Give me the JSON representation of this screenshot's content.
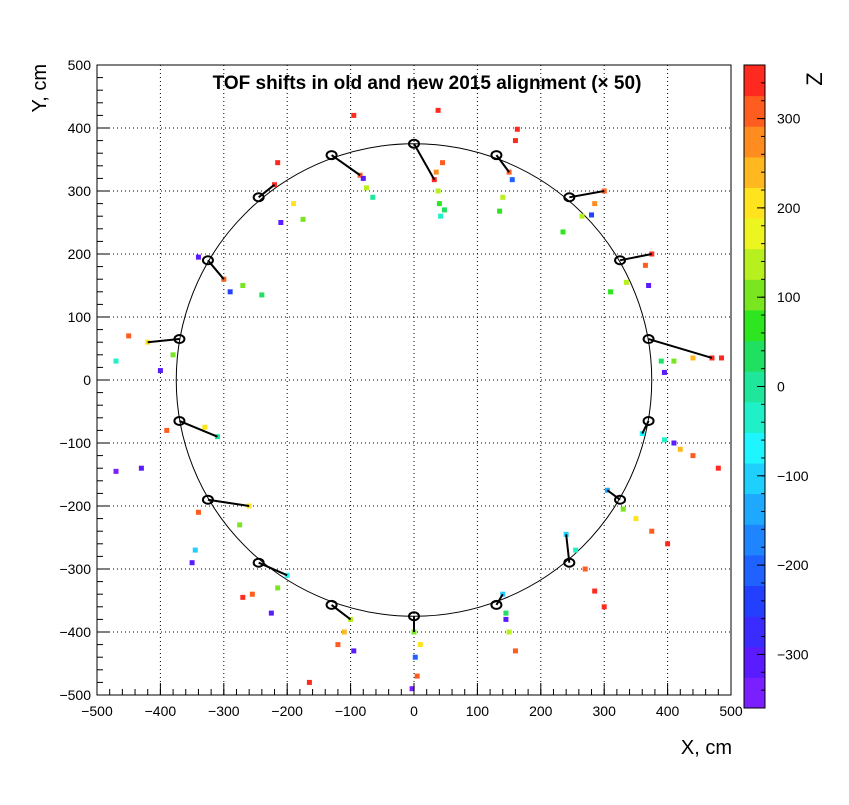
{
  "chart_data": {
    "type": "scatter",
    "title": "TOF shifts in old and new 2015 alignment (× 50)",
    "xlabel": "X, cm",
    "ylabel": "Y, cm",
    "zlabel": "Z",
    "xlim": [
      -500,
      500
    ],
    "ylim": [
      -500,
      500
    ],
    "zlim": [
      -360,
      360
    ],
    "grid": true,
    "x_ticks": [
      -500,
      -400,
      -300,
      -200,
      -100,
      0,
      100,
      200,
      300,
      400,
      500
    ],
    "y_ticks": [
      -500,
      -400,
      -300,
      -200,
      -100,
      0,
      100,
      200,
      300,
      400,
      500
    ],
    "z_ticks": [
      -300,
      -200,
      -100,
      0,
      100,
      200,
      300
    ],
    "z_tick_labels": [
      "−300",
      "−200",
      "−100",
      "0",
      "100",
      "200",
      "300"
    ],
    "x_tick_labels": [
      "−500",
      "−400",
      "−300",
      "−200",
      "−100",
      "0",
      "100",
      "200",
      "300",
      "400",
      "500"
    ],
    "y_tick_labels": [
      "−500",
      "−400",
      "−300",
      "−200",
      "−100",
      "0",
      "100",
      "200",
      "300",
      "400",
      "500"
    ],
    "reference_circle_radius": 375,
    "colormap": [
      "#7a1fff",
      "#5a1cff",
      "#3a2bff",
      "#2440ff",
      "#1f62ff",
      "#1f84ff",
      "#1fa8ff",
      "#1fd0ff",
      "#1ff5ff",
      "#1ff0c8",
      "#1fe69a",
      "#1fe060",
      "#2ee61f",
      "#7ae61f",
      "#b8f01f",
      "#ecf51f",
      "#ffe31f",
      "#ffb81f",
      "#ff8c1f",
      "#ff5c1f",
      "#ff2a1f"
    ],
    "modules": [
      {
        "angle_deg": 90,
        "x": 0,
        "y": 375,
        "points": [
          {
            "x": 32,
            "y": 318,
            "z": 330
          },
          {
            "x": 35,
            "y": 330,
            "z": 280
          },
          {
            "x": 38,
            "y": 300,
            "z": 150
          },
          {
            "x": 40,
            "y": 280,
            "z": 60
          },
          {
            "x": 42,
            "y": 260,
            "z": -40
          },
          {
            "x": 45,
            "y": 345,
            "z": 320
          },
          {
            "x": 38,
            "y": 428,
            "z": 350
          },
          {
            "x": 48,
            "y": 270,
            "z": 20
          }
        ]
      },
      {
        "angle_deg": 70,
        "x": 130,
        "y": 357,
        "points": [
          {
            "x": 150,
            "y": 330,
            "z": 300
          },
          {
            "x": 160,
            "y": 380,
            "z": 340
          },
          {
            "x": 140,
            "y": 290,
            "z": 150
          },
          {
            "x": 135,
            "y": 268,
            "z": 80
          },
          {
            "x": 155,
            "y": 318,
            "z": -200
          },
          {
            "x": 163,
            "y": 398,
            "z": 350
          }
        ]
      },
      {
        "angle_deg": 50,
        "x": 245,
        "y": 290,
        "points": [
          {
            "x": 300,
            "y": 300,
            "z": 300
          },
          {
            "x": 285,
            "y": 280,
            "z": 280
          },
          {
            "x": 265,
            "y": 260,
            "z": 150
          },
          {
            "x": 235,
            "y": 235,
            "z": 80
          },
          {
            "x": 280,
            "y": 262,
            "z": -250
          }
        ]
      },
      {
        "angle_deg": 30,
        "x": 325,
        "y": 190,
        "points": [
          {
            "x": 375,
            "y": 200,
            "z": 340
          },
          {
            "x": 365,
            "y": 182,
            "z": 300
          },
          {
            "x": 335,
            "y": 155,
            "z": 150
          },
          {
            "x": 310,
            "y": 140,
            "z": 80
          },
          {
            "x": 370,
            "y": 150,
            "z": -300
          }
        ]
      },
      {
        "angle_deg": 10,
        "x": 370,
        "y": 65,
        "points": [
          {
            "x": 470,
            "y": 35,
            "z": 330
          },
          {
            "x": 440,
            "y": 35,
            "z": 250
          },
          {
            "x": 410,
            "y": 30,
            "z": 100
          },
          {
            "x": 390,
            "y": 30,
            "z": 20
          },
          {
            "x": 395,
            "y": 12,
            "z": -300
          },
          {
            "x": 485,
            "y": 35,
            "z": 350
          }
        ]
      },
      {
        "angle_deg": -10,
        "x": 370,
        "y": -65,
        "points": [
          {
            "x": 360,
            "y": -85,
            "z": -80
          },
          {
            "x": 395,
            "y": -95,
            "z": -20
          },
          {
            "x": 420,
            "y": -110,
            "z": 250
          },
          {
            "x": 440,
            "y": -120,
            "z": 320
          },
          {
            "x": 410,
            "y": -100,
            "z": -300
          },
          {
            "x": 480,
            "y": -140,
            "z": 350
          }
        ]
      },
      {
        "angle_deg": -30,
        "x": 325,
        "y": -190,
        "points": [
          {
            "x": 305,
            "y": -175,
            "z": -130
          },
          {
            "x": 330,
            "y": -205,
            "z": 100
          },
          {
            "x": 350,
            "y": -220,
            "z": 200
          },
          {
            "x": 375,
            "y": -240,
            "z": 300
          },
          {
            "x": 400,
            "y": -260,
            "z": 340
          }
        ]
      },
      {
        "angle_deg": -50,
        "x": 245,
        "y": -290,
        "points": [
          {
            "x": 240,
            "y": -245,
            "z": -100
          },
          {
            "x": 255,
            "y": -270,
            "z": -50
          },
          {
            "x": 270,
            "y": -300,
            "z": 300
          },
          {
            "x": 285,
            "y": -335,
            "z": 340
          },
          {
            "x": 300,
            "y": -360,
            "z": 350
          }
        ]
      },
      {
        "angle_deg": -70,
        "x": 130,
        "y": -357,
        "points": [
          {
            "x": 140,
            "y": -340,
            "z": -100
          },
          {
            "x": 145,
            "y": -370,
            "z": 50
          },
          {
            "x": 150,
            "y": -400,
            "z": 150
          },
          {
            "x": 160,
            "y": -430,
            "z": 300
          },
          {
            "x": 145,
            "y": -380,
            "z": -300
          }
        ]
      },
      {
        "angle_deg": -90,
        "x": 0,
        "y": -375,
        "points": [
          {
            "x": 0,
            "y": -400,
            "z": 100
          },
          {
            "x": 2,
            "y": -440,
            "z": -200
          },
          {
            "x": 5,
            "y": -470,
            "z": 320
          },
          {
            "x": 10,
            "y": -420,
            "z": 200
          },
          {
            "x": -3,
            "y": -490,
            "z": -350
          }
        ]
      },
      {
        "angle_deg": -110,
        "x": -130,
        "y": -357,
        "points": [
          {
            "x": -100,
            "y": -380,
            "z": 150
          },
          {
            "x": -110,
            "y": -400,
            "z": 250
          },
          {
            "x": -120,
            "y": -420,
            "z": 320
          },
          {
            "x": -95,
            "y": -430,
            "z": -300
          },
          {
            "x": -165,
            "y": -480,
            "z": 340
          }
        ]
      },
      {
        "angle_deg": -130,
        "x": -245,
        "y": -290,
        "points": [
          {
            "x": -200,
            "y": -310,
            "z": -80
          },
          {
            "x": -215,
            "y": -330,
            "z": 100
          },
          {
            "x": -255,
            "y": -340,
            "z": 320
          },
          {
            "x": -270,
            "y": -345,
            "z": 340
          },
          {
            "x": -225,
            "y": -370,
            "z": -300
          }
        ]
      },
      {
        "angle_deg": -150,
        "x": -325,
        "y": -190,
        "points": [
          {
            "x": -260,
            "y": -200,
            "z": 200
          },
          {
            "x": -275,
            "y": -230,
            "z": 100
          },
          {
            "x": -340,
            "y": -210,
            "z": 320
          },
          {
            "x": -345,
            "y": -270,
            "z": -100
          },
          {
            "x": -350,
            "y": -290,
            "z": -300
          }
        ]
      },
      {
        "angle_deg": -170,
        "x": -370,
        "y": -65,
        "points": [
          {
            "x": -310,
            "y": -90,
            "z": 0
          },
          {
            "x": -330,
            "y": -75,
            "z": 200
          },
          {
            "x": -390,
            "y": -80,
            "z": 320
          },
          {
            "x": -430,
            "y": -140,
            "z": -300
          },
          {
            "x": -470,
            "y": -145,
            "z": -340
          }
        ]
      },
      {
        "angle_deg": 170,
        "x": -370,
        "y": 65,
        "points": [
          {
            "x": -420,
            "y": 60,
            "z": 200
          },
          {
            "x": -450,
            "y": 70,
            "z": 320
          },
          {
            "x": -470,
            "y": 30,
            "z": -50
          },
          {
            "x": -400,
            "y": 15,
            "z": -300
          },
          {
            "x": -380,
            "y": 40,
            "z": 100
          }
        ]
      },
      {
        "angle_deg": 150,
        "x": -325,
        "y": 190,
        "points": [
          {
            "x": -300,
            "y": 160,
            "z": 300
          },
          {
            "x": -270,
            "y": 150,
            "z": 100
          },
          {
            "x": -240,
            "y": 135,
            "z": 50
          },
          {
            "x": -340,
            "y": 195,
            "z": -300
          },
          {
            "x": -290,
            "y": 140,
            "z": -250
          }
        ]
      },
      {
        "angle_deg": 130,
        "x": -245,
        "y": 290,
        "points": [
          {
            "x": -220,
            "y": 310,
            "z": 330
          },
          {
            "x": -190,
            "y": 280,
            "z": 200
          },
          {
            "x": -175,
            "y": 255,
            "z": 100
          },
          {
            "x": -210,
            "y": 250,
            "z": -300
          },
          {
            "x": -215,
            "y": 345,
            "z": 350
          }
        ]
      },
      {
        "angle_deg": 110,
        "x": -130,
        "y": 357,
        "points": [
          {
            "x": -85,
            "y": 325,
            "z": 300
          },
          {
            "x": -75,
            "y": 305,
            "z": 120
          },
          {
            "x": -65,
            "y": 290,
            "z": 0
          },
          {
            "x": -80,
            "y": 320,
            "z": -300
          },
          {
            "x": -95,
            "y": 420,
            "z": 350
          }
        ]
      }
    ]
  }
}
